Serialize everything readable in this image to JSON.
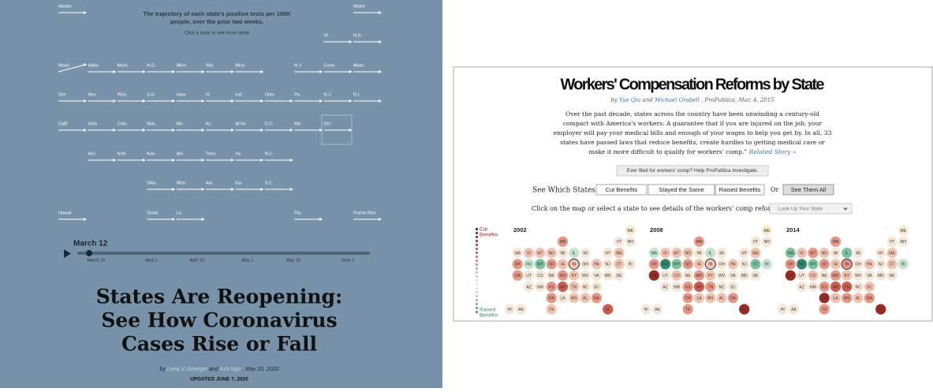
{
  "left": {
    "intro": [
      "The trajectory of each state's positive tests per 100K",
      "people, over the prior two weeks."
    ],
    "hint": "Click a state to see more detail",
    "state_grid": [
      [
        "Alaska",
        null,
        null,
        null,
        null,
        null,
        null,
        null,
        null,
        null,
        "Maine"
      ],
      [
        null,
        null,
        null,
        null,
        null,
        null,
        null,
        null,
        null,
        "Vt.",
        "N.H."
      ],
      [
        "Wash.",
        "Idaho",
        "Mont.",
        "N.D.",
        "Minn.",
        "Wis.",
        "Mich.",
        null,
        "N.Y.",
        "Conn.",
        "Mass."
      ],
      [
        "Ore.",
        "Nev.",
        "Wyo.",
        "S.D.",
        "Iowa",
        "Ill.",
        "Ind.",
        "Ohio",
        "Pa.",
        "N.J.",
        "R.I."
      ],
      [
        "Calif.",
        "Utah",
        "Colo.",
        "Neb.",
        "Mo.",
        "Ky.",
        "W.Va.",
        "D.C.",
        "Md.",
        "Del.",
        null
      ],
      [
        null,
        "Ariz.",
        "N.M.",
        "Kan.",
        "Ark.",
        "Tenn.",
        "Va.",
        "N.C.",
        null,
        null,
        null
      ],
      [
        null,
        null,
        null,
        "Okla.",
        "Miss.",
        "Ala.",
        "Ga.",
        "S.C.",
        null,
        null,
        null
      ],
      [
        "Hawaii",
        null,
        null,
        "Texas",
        "La.",
        null,
        null,
        null,
        "Fla.",
        null,
        "Puerto Rico"
      ]
    ],
    "timeline": {
      "current": "March 12",
      "ticks": [
        "March 15",
        "April 1",
        "April 15",
        "May 1",
        "May 15",
        "June 1"
      ]
    },
    "title": [
      "States Are Reopening:",
      "See How Coronavirus",
      "Cases Rise or Fall"
    ],
    "byline": {
      "prefix": "by",
      "author1": "Lena V. Groeger",
      "join": "and",
      "author2": "Ash Ngu",
      "suffix": ", May 20, 2020"
    },
    "updated": "UPDATED JUNE 7, 2020"
  },
  "right": {
    "title": "Workers' Compensation Reforms by State",
    "byline": {
      "prefix": "by",
      "author1": "Yue Qiu",
      "join": "and",
      "author2": "Michael Grabell",
      "suffix": ", ProPublica, Mar. 4, 2015"
    },
    "paragraph": [
      "Over the past decade, states across the country have been unwinding a century-old",
      "compact with America's workers: A guarantee that if you are injured on the job, your",
      "employer will pay your medical bills and enough of your wages to help you get by. In all, 33",
      "states have passed laws that reduce benefits, create hurdles to getting medical care or",
      "make it more difficult to qualify for workers' comp.”"
    ],
    "related": "Related Story »",
    "cta": "Ever filed for workers' comp? Help ProPublica investigate.",
    "filter_label": "See Which States",
    "filters": [
      "Cut Benefits",
      "Stayed the Same",
      "Raised Benefits"
    ],
    "or": "Or",
    "see_all": "See Them All",
    "lookup_prompt": "Click on the map or select a state to see details of the workers' comp reforms:",
    "lookup": "Look Up Your State",
    "legend": {
      "top": [
        "Cut",
        "Benefits"
      ],
      "bottom": [
        "Raised",
        "Benefits"
      ]
    },
    "states": [
      "ME",
      "MN",
      "VT",
      "NH",
      "WA",
      "ID",
      "MT",
      "ND",
      "WI",
      "IL",
      "MI",
      "NY",
      "MA",
      "OR",
      "NV",
      "WY",
      "SD",
      "IA",
      "IN",
      "OH",
      "PA",
      "NJ",
      "CT",
      "RI",
      "CA",
      "UT",
      "CO",
      "NE",
      "MO",
      "KY",
      "WV",
      "VA",
      "MD",
      "DE",
      "AZ",
      "NM",
      "KS",
      "AR",
      "TN",
      "NC",
      "SC",
      "OK",
      "LA",
      "MS",
      "AL",
      "GA",
      "HI",
      "AK",
      "TX",
      "FL"
    ],
    "maps": [
      {
        "year": "2002",
        "colors": [
          "#f7eccb",
          "#e89685",
          "#f6e8d8",
          "#f6e8d8",
          "#f6e8d8",
          "#f2c4b0",
          "#f2c4b0",
          "#f2c4b0",
          "#f6e8d8",
          "#c5e3cf",
          "#f6e8d8",
          "#f6e8d8",
          "#f2c4b0",
          "#e89685",
          "#c5e3cf",
          "#7cc3a0",
          "#e89685",
          "#f2c4b0",
          "#f2c4b0",
          "#f6e8d8",
          "#f2c4b0",
          "#f6e8d8",
          "#f2c4b0",
          "#f6e8d8",
          "#e89685",
          "#f6e8d8",
          "#f6e8d8",
          "#f6e8d8",
          "#e89685",
          "#f2c4b0",
          "#f6e8d8",
          "#f6e8d8",
          "#f6e8d8",
          "#f6e8d8",
          "#f6e8d8",
          "#f6e8d8",
          "#e89685",
          "#cf5a4e",
          "#f2c4b0",
          "#f6e8d8",
          "#f6e8d8",
          "#e89685",
          "#f6e8d8",
          "#f2c4b0",
          "#f2c4b0",
          "#e89685",
          "#f6e8d8",
          "#f6e8d8",
          "#f2c4b0",
          "#cf5a4e"
        ]
      },
      {
        "year": "2008",
        "colors": [
          "#f7eccb",
          "#e89685",
          "#f6e8d8",
          "#f6e8d8",
          "#c5e3cf",
          "#f2c4b0",
          "#f2c4b0",
          "#f2c4b0",
          "#f6e8d8",
          "#c5e3cf",
          "#f6e8d8",
          "#f6e8d8",
          "#f2c4b0",
          "#e89685",
          "#2e8b6c",
          "#7cc3a0",
          "#e89685",
          "#f2c4b0",
          "#f2c4b0",
          "#f6e8d8",
          "#f2c4b0",
          "#f6e8d8",
          "#7cc3a0",
          "#c5e3cf",
          "#9b2a25",
          "#f6e8d8",
          "#f2c4b0",
          "#f6e8d8",
          "#e89685",
          "#f2c4b0",
          "#f6e8d8",
          "#f6e8d8",
          "#f6e8d8",
          "#f6e8d8",
          "#f6e8d8",
          "#f6e8d8",
          "#e89685",
          "#cf5a4e",
          "#e89685",
          "#f6e8d8",
          "#f6e8d8",
          "#e89685",
          "#f2c4b0",
          "#f2c4b0",
          "#f2c4b0",
          "#e89685",
          "#f6e8d8",
          "#f6e8d8",
          "#e89685",
          "#9b2a25"
        ]
      },
      {
        "year": "2014",
        "colors": [
          "#f7eccb",
          "#e89685",
          "#f6e8d8",
          "#f6e8d8",
          "#7cc3a0",
          "#f2c4b0",
          "#e89685",
          "#f2c4b0",
          "#f6e8d8",
          "#7cc3a0",
          "#f6e8d8",
          "#f6e8d8",
          "#f2c4b0",
          "#e89685",
          "#2e8b6c",
          "#7cc3a0",
          "#e89685",
          "#f2c4b0",
          "#e89685",
          "#f6e8d8",
          "#f2c4b0",
          "#f6e8d8",
          "#f2c4b0",
          "#c5e3cf",
          "#9b2a25",
          "#f6e8d8",
          "#f2c4b0",
          "#f6e8d8",
          "#e89685",
          "#f2c4b0",
          "#f6e8d8",
          "#f6e8d8",
          "#f6e8d8",
          "#f6e8d8",
          "#f6e8d8",
          "#f6e8d8",
          "#e89685",
          "#cf5a4e",
          "#cf5a4e",
          "#f6e8d8",
          "#f2c4b0",
          "#9b2a25",
          "#f2c4b0",
          "#e89685",
          "#f2c4b0",
          "#e89685",
          "#f6e8d8",
          "#f6e8d8",
          "#e89685",
          "#9b2a25"
        ]
      }
    ]
  }
}
